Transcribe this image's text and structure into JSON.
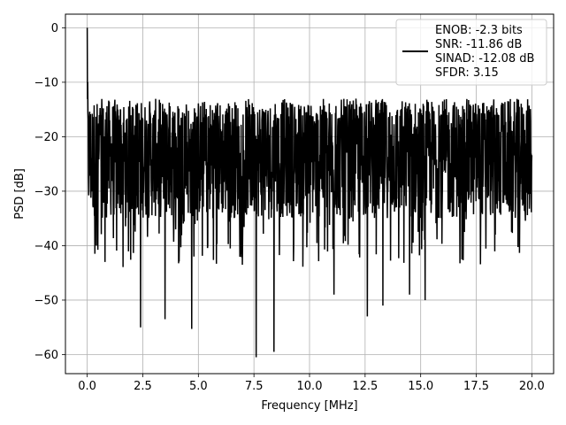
{
  "chart_data": {
    "type": "line",
    "title": "",
    "xlabel": "Frequency [MHz]",
    "ylabel": "PSD [dB]",
    "xlim": [
      -0.98,
      20.98
    ],
    "ylim": [
      -63.5,
      2.5
    ],
    "xticks": [
      0.0,
      2.5,
      5.0,
      7.5,
      10.0,
      12.5,
      15.0,
      17.5,
      20.0
    ],
    "xtick_labels": [
      "0.0",
      "2.5",
      "5.0",
      "7.5",
      "10.0",
      "12.5",
      "15.0",
      "17.5",
      "20.0"
    ],
    "yticks": [
      0,
      -10,
      -20,
      -30,
      -40,
      -50,
      -60
    ],
    "ytick_labels": [
      "0",
      "−10",
      "−20",
      "−30",
      "−40",
      "−50",
      "−60"
    ],
    "grid": true,
    "legend_position": "top-right",
    "series": [
      {
        "color": "#000000",
        "line_width": 1.5,
        "legend_lines": [
          "ENOB: -2.3 bits",
          "SNR: -11.86 dB",
          "SINAD: -12.08 dB",
          "SFDR: 3.15"
        ],
        "noise_floor_db": -25,
        "noise_band_db": [
          -35,
          -13
        ],
        "peaks": [
          {
            "x": 0.0,
            "y": 0.0
          },
          {
            "x": 0.02,
            "y": -10.0
          }
        ],
        "notable_dips": [
          {
            "x": 0.35,
            "y": -41.5
          },
          {
            "x": 0.8,
            "y": -43.0
          },
          {
            "x": 2.4,
            "y": -55.0
          },
          {
            "x": 3.5,
            "y": -53.5
          },
          {
            "x": 4.7,
            "y": -55.3
          },
          {
            "x": 7.6,
            "y": -60.5
          },
          {
            "x": 8.4,
            "y": -59.5
          },
          {
            "x": 11.1,
            "y": -49.0
          },
          {
            "x": 12.6,
            "y": -53.0
          },
          {
            "x": 13.3,
            "y": -51.0
          },
          {
            "x": 14.5,
            "y": -49.0
          },
          {
            "x": 15.2,
            "y": -50.0
          }
        ]
      }
    ]
  },
  "colors": {
    "background": "#ffffff",
    "grid": "#b0b0b0",
    "axes": "#000000",
    "line": "#000000"
  }
}
